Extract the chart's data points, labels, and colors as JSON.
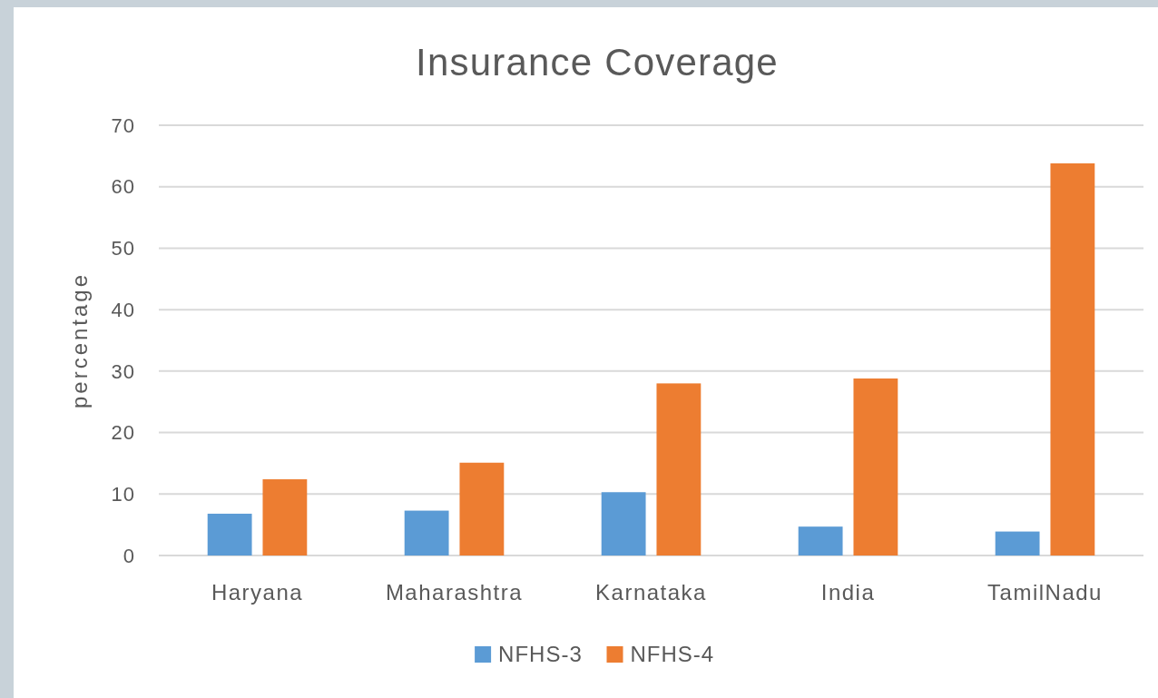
{
  "chart_data": {
    "type": "bar",
    "title": "Insurance Coverage",
    "ylabel": "percentage",
    "categories": [
      "Haryana",
      "Maharashtra",
      "Karnataka",
      "India",
      "TamilNadu"
    ],
    "series": [
      {
        "name": "NFHS-3",
        "color": "#5b9bd5",
        "values": [
          6.8,
          7.3,
          10.3,
          4.7,
          3.9
        ]
      },
      {
        "name": "NFHS-4",
        "color": "#ed7d31",
        "values": [
          12.4,
          15.1,
          28.0,
          28.8,
          63.8
        ]
      }
    ],
    "ylim": [
      0,
      70
    ],
    "yticks": [
      0,
      10,
      20,
      30,
      40,
      50,
      60,
      70
    ],
    "grid": "y",
    "legend": "bottom"
  }
}
